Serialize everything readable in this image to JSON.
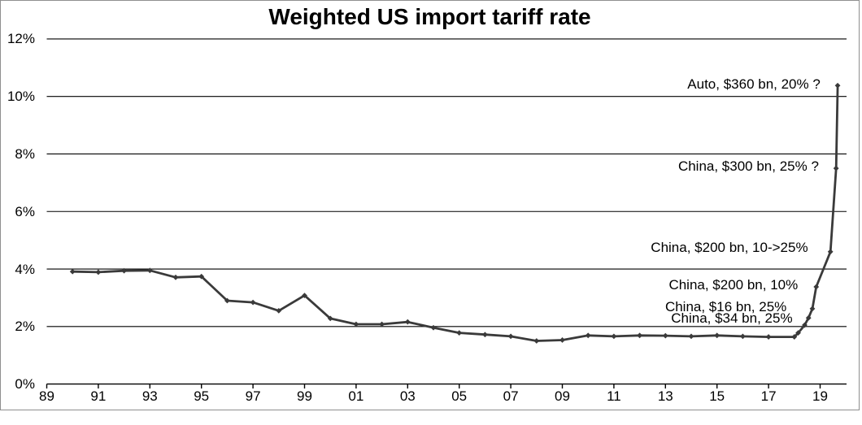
{
  "chart_data": {
    "type": "line",
    "title": "Weighted US import tariff rate",
    "xlabel": "",
    "ylabel": "",
    "grid": "horizontal",
    "legend": "none",
    "line_color": "#3a3a3a",
    "marker": "diamond",
    "y_axis": {
      "range": [
        0,
        12
      ],
      "ticks": [
        {
          "value": 0,
          "label": "0%"
        },
        {
          "value": 2,
          "label": "2%"
        },
        {
          "value": 4,
          "label": "4%"
        },
        {
          "value": 6,
          "label": "6%"
        },
        {
          "value": 8,
          "label": "8%"
        },
        {
          "value": 10,
          "label": "10%"
        },
        {
          "value": 12,
          "label": "12%"
        }
      ]
    },
    "x_axis": {
      "range": [
        1989,
        2020.1
      ],
      "ticks": [
        {
          "value": 1989,
          "label": "89"
        },
        {
          "value": 1991,
          "label": "91"
        },
        {
          "value": 1993,
          "label": "93"
        },
        {
          "value": 1995,
          "label": "95"
        },
        {
          "value": 1997,
          "label": "97"
        },
        {
          "value": 1999,
          "label": "99"
        },
        {
          "value": 2001,
          "label": "01"
        },
        {
          "value": 2003,
          "label": "03"
        },
        {
          "value": 2005,
          "label": "05"
        },
        {
          "value": 2007,
          "label": "07"
        },
        {
          "value": 2009,
          "label": "09"
        },
        {
          "value": 2011,
          "label": "11"
        },
        {
          "value": 2013,
          "label": "13"
        },
        {
          "value": 2015,
          "label": "15"
        },
        {
          "value": 2017,
          "label": "17"
        },
        {
          "value": 2019,
          "label": "19"
        }
      ]
    },
    "series": [
      {
        "name": "Weighted US import tariff rate",
        "x": [
          1990,
          1991,
          1992,
          1993,
          1994,
          1995,
          1996,
          1997,
          1998,
          1999,
          2000,
          2001,
          2002,
          2003,
          2004,
          2005,
          2006,
          2007,
          2008,
          2009,
          2010,
          2011,
          2012,
          2013,
          2014,
          2015,
          2016,
          2017,
          2018,
          2018.15,
          2018.4,
          2018.55,
          2018.7,
          2018.85,
          2019.4,
          2019.62,
          2019.68
        ],
        "values": [
          3.91,
          3.89,
          3.94,
          3.95,
          3.71,
          3.74,
          2.9,
          2.84,
          2.55,
          3.08,
          2.28,
          2.08,
          2.08,
          2.16,
          1.96,
          1.78,
          1.72,
          1.66,
          1.5,
          1.53,
          1.69,
          1.66,
          1.69,
          1.68,
          1.66,
          1.69,
          1.66,
          1.64,
          1.64,
          1.78,
          2.05,
          2.3,
          2.62,
          3.38,
          4.6,
          7.5,
          10.38
        ]
      }
    ],
    "annotations": [
      {
        "text": "Auto, $360 bn, 20% ?",
        "year": 2019.01,
        "pct": 10.41
      },
      {
        "text": "China, $300 bn, 25% ?",
        "year": 2018.95,
        "pct": 7.56
      },
      {
        "text": "China, $200 bn, 10->25%",
        "year": 2018.53,
        "pct": 4.73
      },
      {
        "text": "China, $200 bn, 10%",
        "year": 2018.14,
        "pct": 3.45
      },
      {
        "text": "China, $16 bn, 25%",
        "year": 2017.7,
        "pct": 2.67
      },
      {
        "text": "China, $34 bn, 25%",
        "year": 2017.93,
        "pct": 2.29
      }
    ]
  }
}
